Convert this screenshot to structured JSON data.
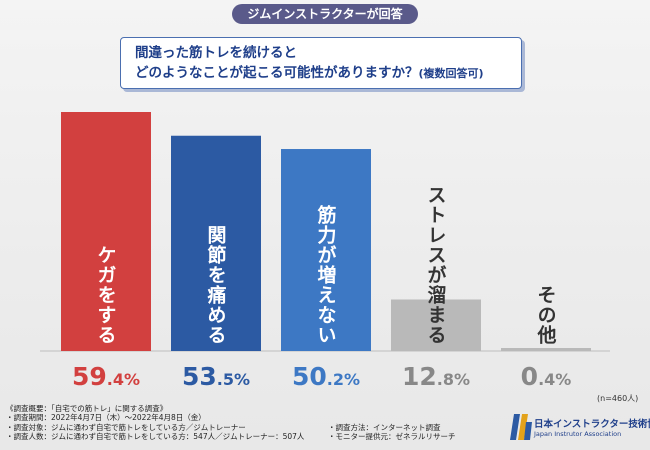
{
  "header": {
    "badge": "ジムインストラクターが回答"
  },
  "question": {
    "line1": "間違った筋トレを続けると",
    "line2": "どのようなことが起こる可能性がありますか？",
    "note": "(複数回答可)"
  },
  "chart_data": {
    "type": "bar",
    "categories": [
      "ケガをする",
      "関節を痛める",
      "筋力が増えない",
      "ストレスが溜まる",
      "その他"
    ],
    "values": [
      59.4,
      53.5,
      50.2,
      12.8,
      0.4
    ],
    "value_labels": [
      {
        "int": "59",
        "dec": ".4%"
      },
      {
        "int": "53",
        "dec": ".5%"
      },
      {
        "int": "50",
        "dec": ".2%"
      },
      {
        "int": "12",
        "dec": ".8%"
      },
      {
        "int": "0",
        "dec": ".4%"
      }
    ],
    "unit": "%",
    "ylim": [
      0,
      59.4
    ],
    "colors": [
      "#d2403f",
      "#2c5aa3",
      "#3d78c4",
      "#b9b9b9",
      "#b9b9b9"
    ],
    "value_colors": [
      "#d2403f",
      "#2c5aa3",
      "#3d78c4",
      "#888888",
      "#888888"
    ],
    "label_colors": [
      "#ffffff",
      "#ffffff",
      "#ffffff",
      "#333333",
      "#333333"
    ]
  },
  "sample_note": "(n=460人)",
  "survey": {
    "title": "《調査概要：「自宅での筋トレ」に関する調査》",
    "period": "・調査期間：2022年4月7日（木）〜2022年4月8日（金）",
    "method": "・調査方法：インターネット調査",
    "target": "・調査対象：ジムに通わず自宅で筋トレをしている方／ジムトレーナー",
    "count": "・調査人数：ジムに通わず自宅で筋トレをしている方：547人／ジムトレーナー：507人",
    "provider": "・モニター提供元：ゼネラルリサーチ"
  },
  "logo": {
    "name_ja": "日本インストラクター技術協会",
    "name_en": "Japan Instrutor Association"
  }
}
